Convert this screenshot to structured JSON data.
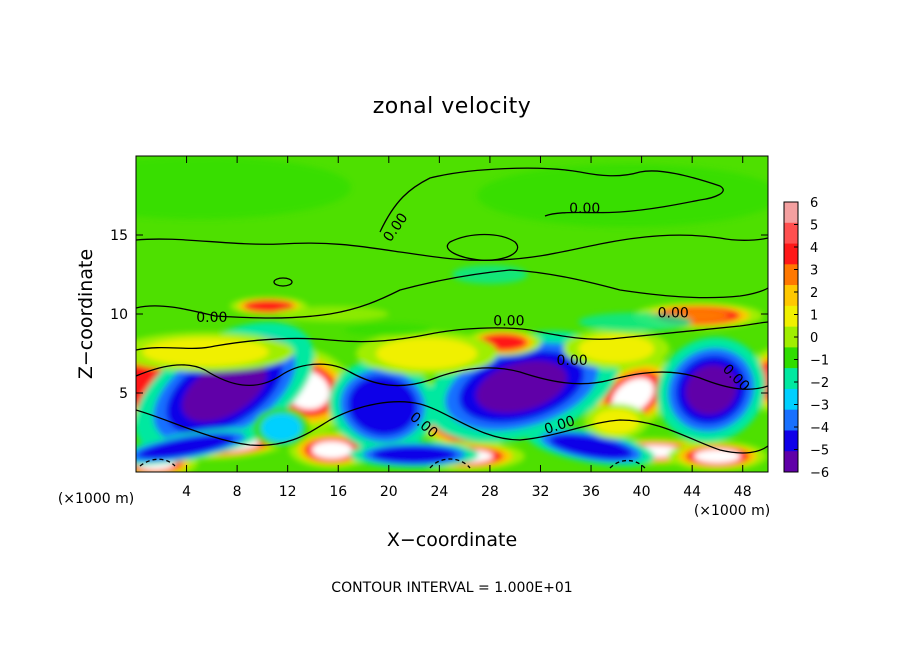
{
  "chart_data": {
    "type": "heatmap",
    "title": "zonal velocity",
    "xlabel": "X−coordinate",
    "ylabel": "Z−coordinate",
    "x_unit_label": "(×1000 m)",
    "y_unit_label": "(×1000 m)",
    "xlim": [
      0,
      50
    ],
    "ylim": [
      0,
      20
    ],
    "x_ticks": [
      4,
      8,
      12,
      16,
      20,
      24,
      28,
      32,
      36,
      40,
      44,
      48
    ],
    "y_ticks": [
      5,
      10,
      15
    ],
    "x_tick_labels": [
      "4",
      "8",
      "12",
      "16",
      "20",
      "24",
      "28",
      "32",
      "36",
      "40",
      "44",
      "48"
    ],
    "y_tick_labels": [
      "5",
      "10",
      "15"
    ],
    "colorbar": {
      "ticks": [
        6,
        5,
        4,
        3,
        2,
        1,
        0,
        -1,
        -2,
        -3,
        -4,
        -5,
        -6
      ],
      "tick_labels": [
        "6",
        "5",
        "4",
        "3",
        "2",
        "1",
        "0",
        "−1",
        "−2",
        "−3",
        "−4",
        "−5",
        "−6"
      ],
      "colors": [
        "#f4a0a0",
        "#ff5050",
        "#ff1818",
        "#ff7800",
        "#ffc800",
        "#f0f000",
        "#a0ee00",
        "#30dd00",
        "#00e8a0",
        "#00d0ff",
        "#1870ff",
        "#1000e8",
        "#6000a8"
      ],
      "range": [
        -6,
        6
      ]
    },
    "contour_labels": [
      {
        "x": 6,
        "z": 9.8,
        "text": "0.00",
        "angle": 0
      },
      {
        "x": 29.5,
        "z": 9.6,
        "text": "0.00",
        "angle": 0
      },
      {
        "x": 42.5,
        "z": 10.1,
        "text": "0.00",
        "angle": 0
      },
      {
        "x": 35.5,
        "z": 16.7,
        "text": "0.00",
        "angle": 0
      },
      {
        "x": 20.5,
        "z": 15.5,
        "text": "0.00",
        "angle": -55
      },
      {
        "x": 34.5,
        "z": 7.1,
        "text": "0.00",
        "angle": 0
      },
      {
        "x": 33.5,
        "z": 3.0,
        "text": "0.00",
        "angle": -18
      },
      {
        "x": 22.8,
        "z": 3.0,
        "text": "0.00",
        "angle": 40
      },
      {
        "x": 47.5,
        "z": 6.0,
        "text": "0.00",
        "angle": 45
      }
    ],
    "footnote": "CONTOUR INTERVAL = 1.000E+01",
    "anomalies": [
      {
        "x": 6.5,
        "z": 5.6,
        "a": 3.3,
        "b": 1.1,
        "rot": -30,
        "v": 6.5
      },
      {
        "x": 13.5,
        "z": 5.2,
        "a": 2.3,
        "b": 1.5,
        "rot": 20,
        "v": 6.5
      },
      {
        "x": 24.0,
        "z": 3.6,
        "a": 3.6,
        "b": 0.9,
        "rot": 35,
        "v": 6.5
      },
      {
        "x": 33.0,
        "z": 5.3,
        "a": 2.4,
        "b": 0.8,
        "rot": -20,
        "v": 6.5
      },
      {
        "x": 39.3,
        "z": 4.8,
        "a": 2.3,
        "b": 1.2,
        "rot": -35,
        "v": 6.5
      },
      {
        "x": 46.5,
        "z": 4.8,
        "a": 2.0,
        "b": 1.2,
        "rot": -40,
        "v": 6.5
      },
      {
        "x": 50.5,
        "z": 5.8,
        "a": 1.3,
        "b": 1.2,
        "rot": 0,
        "v": 6.0
      },
      {
        "x": 7.5,
        "z": 1.7,
        "a": 2.8,
        "b": 0.5,
        "rot": -5,
        "v": 6.5
      },
      {
        "x": 15.5,
        "z": 1.4,
        "a": 2.0,
        "b": 0.7,
        "rot": 0,
        "v": 6.5
      },
      {
        "x": 26.0,
        "z": 1.0,
        "a": 2.8,
        "b": 0.55,
        "rot": 0,
        "v": 6.5
      },
      {
        "x": 41.0,
        "z": 1.3,
        "a": 3.0,
        "b": 0.5,
        "rot": 0,
        "v": 6.5
      },
      {
        "x": 46.0,
        "z": 1.0,
        "a": 2.3,
        "b": 0.55,
        "rot": 0,
        "v": 6.5
      },
      {
        "x": 1.5,
        "z": 0.6,
        "a": 2.0,
        "b": 0.6,
        "rot": 0,
        "v": 6.5
      },
      {
        "x": 1.0,
        "z": 5.5,
        "a": 1.8,
        "b": 1.5,
        "rot": 0,
        "v": 5.0
      },
      {
        "x": 7.0,
        "z": 5.2,
        "a": 4.6,
        "b": 2.0,
        "rot": -30,
        "v": -6.0
      },
      {
        "x": 19.5,
        "z": 4.2,
        "a": 2.5,
        "b": 1.7,
        "rot": 10,
        "v": -5.0
      },
      {
        "x": 30.5,
        "z": 5.4,
        "a": 4.6,
        "b": 1.9,
        "rot": -15,
        "v": -6.0
      },
      {
        "x": 45.5,
        "z": 5.2,
        "a": 2.6,
        "b": 1.9,
        "rot": -35,
        "v": -5.5
      },
      {
        "x": 4.0,
        "z": 1.6,
        "a": 3.5,
        "b": 0.5,
        "rot": -10,
        "v": -5.0
      },
      {
        "x": 22.0,
        "z": 1.1,
        "a": 3.0,
        "b": 0.5,
        "rot": 0,
        "v": -4.5
      },
      {
        "x": 36.0,
        "z": 1.6,
        "a": 3.0,
        "b": 0.6,
        "rot": 10,
        "v": -4.5
      },
      {
        "x": 11.5,
        "z": 2.8,
        "a": 1.6,
        "b": 0.9,
        "rot": 0,
        "v": -3.0
      },
      {
        "x": 38.0,
        "z": 3.2,
        "a": 1.8,
        "b": 0.8,
        "rot": 0,
        "v": 2.5
      },
      {
        "x": 10.5,
        "z": 10.5,
        "a": 1.8,
        "b": 0.35,
        "rot": 0,
        "v": 5.0
      },
      {
        "x": 29.0,
        "z": 8.2,
        "a": 1.8,
        "b": 0.5,
        "rot": 0,
        "v": 5.0
      },
      {
        "x": 44.5,
        "z": 9.9,
        "a": 3.0,
        "b": 0.5,
        "rot": 0,
        "v": 4.0
      },
      {
        "x": 5.5,
        "z": 7.6,
        "a": 5.0,
        "b": 0.9,
        "rot": 0,
        "v": 2.5
      },
      {
        "x": 23.0,
        "z": 7.5,
        "a": 4.0,
        "b": 1.0,
        "rot": 0,
        "v": 2.5
      },
      {
        "x": 38.0,
        "z": 7.8,
        "a": 3.0,
        "b": 0.9,
        "rot": 0,
        "v": 2.0
      },
      {
        "x": 15.5,
        "z": 10.0,
        "a": 4.5,
        "b": 0.5,
        "rot": 0,
        "v": 1.5
      },
      {
        "x": 28.0,
        "z": 12.5,
        "a": 3.0,
        "b": 0.6,
        "rot": 0,
        "v": -1.8
      },
      {
        "x": 39.5,
        "z": 9.5,
        "a": 4.5,
        "b": 0.6,
        "rot": 0,
        "v": -1.5
      },
      {
        "x": 20.0,
        "z": 9.0,
        "a": 3.5,
        "b": 0.4,
        "rot": 0,
        "v": -1.3
      },
      {
        "x": 5.0,
        "z": 18.0,
        "a": 12.0,
        "b": 2.0,
        "rot": 0,
        "v": -1.0
      },
      {
        "x": 39.0,
        "z": 17.5,
        "a": 12.0,
        "b": 2.0,
        "rot": 0,
        "v": -0.8
      }
    ]
  }
}
